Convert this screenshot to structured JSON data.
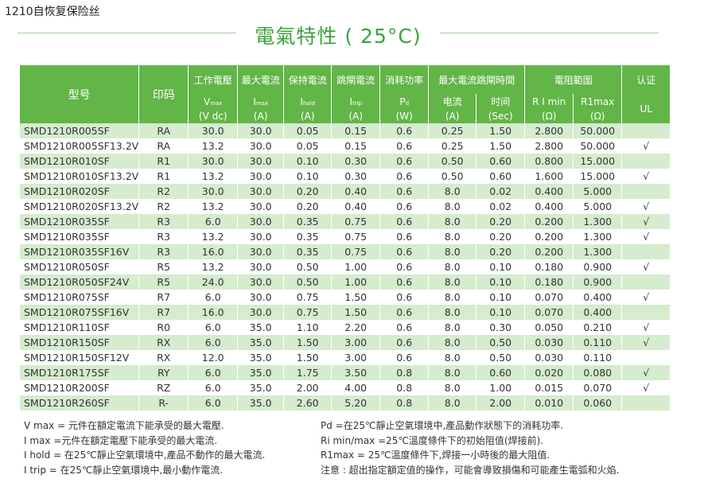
{
  "page_title": "1210自恢复保险丝",
  "section_title": "電氣特性 ( 25°C)",
  "table": {
    "header": {
      "row1": [
        "型号",
        "印码",
        "工作電壓",
        "最大電流",
        "保持電流",
        "跳閘電流",
        "消耗功率",
        "最大電流跳閘時間",
        "電阻範圍",
        "认证"
      ],
      "row2": [
        {
          "main": "V",
          "sub": "max"
        },
        {
          "main": "I",
          "sub": "max"
        },
        {
          "main": "I",
          "sub": "hold"
        },
        {
          "main": "I",
          "sub": "trip"
        },
        {
          "main": "P",
          "sub": "d"
        },
        "电流",
        "时间",
        "R I min",
        "R1max",
        "UL"
      ],
      "row3": [
        "(V dc)",
        "(A)",
        "(A)",
        "(A)",
        "(W)",
        "(A)",
        "(Sec)",
        "(Ω)",
        "(Ω)"
      ]
    },
    "rows": [
      [
        "SMD1210R005SF",
        "RA",
        "30.0",
        "30.0",
        "0.05",
        "0.15",
        "0.6",
        "0.25",
        "1.50",
        "2.800",
        "50.000",
        null
      ],
      [
        "SMD1210R005SF13.2V",
        "RA",
        "13.2",
        "30.0",
        "0.05",
        "0.15",
        "0.6",
        "0.25",
        "1.50",
        "2.800",
        "50.000",
        "√"
      ],
      [
        "SMD1210R010SF",
        "R1",
        "30.0",
        "30.0",
        "0.10",
        "0.30",
        "0.6",
        "0.50",
        "0.60",
        "0.800",
        "15.000",
        null
      ],
      [
        "SMD1210R010SF13.2V",
        "R1",
        "13.2",
        "30.0",
        "0.10",
        "0.30",
        "0.6",
        "0.50",
        "0.60",
        "1.600",
        "15.000",
        "√"
      ],
      [
        "SMD1210R020SF",
        "R2",
        "30.0",
        "30.0",
        "0.20",
        "0.40",
        "0.6",
        "8.0",
        "0.02",
        "0.400",
        "5.000",
        null
      ],
      [
        "SMD1210R020SF13.2V",
        "R2",
        "13.2",
        "30.0",
        "0.20",
        "0.40",
        "0.6",
        "8.0",
        "0.02",
        "0.400",
        "5.000",
        "√"
      ],
      [
        "SMD1210R035SF",
        "R3",
        "6.0",
        "30.0",
        "0.35",
        "0.75",
        "0.6",
        "8.0",
        "0.20",
        "0.200",
        "1.300",
        "√"
      ],
      [
        "SMD1210R035SF",
        "R3",
        "13.2",
        "30.0",
        "0.35",
        "0.75",
        "0.6",
        "8.0",
        "0.20",
        "0.200",
        "1.300",
        "√"
      ],
      [
        "SMD1210R035SF16V",
        "R3",
        "16.0",
        "30.0",
        "0.35",
        "0.75",
        "0.6",
        "8.0",
        "0.20",
        "0.200",
        "1.300",
        null
      ],
      [
        "SMD1210R050SF",
        "R5",
        "13.2",
        "30.0",
        "0.50",
        "1.00",
        "0.6",
        "8.0",
        "0.10",
        "0.180",
        "0.900",
        "√"
      ],
      [
        "SMD1210R050SF24V",
        "R5",
        "24.0",
        "30.0",
        "0.50",
        "1.00",
        "0.6",
        "8.0",
        "0.10",
        "0.180",
        "0.900",
        null
      ],
      [
        "SMD1210R075SF",
        "R7",
        "6.0",
        "30.0",
        "0.75",
        "1.50",
        "0.6",
        "8.0",
        "0.10",
        "0.070",
        "0.400",
        "√"
      ],
      [
        "SMD1210R075SF16V",
        "R7",
        "16.0",
        "30.0",
        "0.75",
        "1.50",
        "0.6",
        "8.0",
        "0.10",
        "0.070",
        "0.400",
        null
      ],
      [
        "SMD1210R110SF",
        "R0",
        "6.0",
        "35.0",
        "1.10",
        "2.20",
        "0.6",
        "8.0",
        "0.30",
        "0.050",
        "0.210",
        "√"
      ],
      [
        "SMD1210R150SF",
        "RX",
        "6.0",
        "35.0",
        "1.50",
        "3.00",
        "0.6",
        "8.0",
        "0.50",
        "0.030",
        "0.110",
        "√"
      ],
      [
        "SMD1210R150SF12V",
        "RX",
        "12.0",
        "35.0",
        "1.50",
        "3.00",
        "0.6",
        "8.0",
        "0.50",
        "0.030",
        "0.110",
        null
      ],
      [
        "SMD1210R175SF",
        "RY",
        "6.0",
        "35.0",
        "1.75",
        "3.50",
        "0.8",
        "8.0",
        "0.60",
        "0.020",
        "0.080",
        "√"
      ],
      [
        "SMD1210R200SF",
        "RZ",
        "6.0",
        "35.0",
        "2.00",
        "4.00",
        "0.8",
        "8.0",
        "1.00",
        "0.015",
        "0.070",
        "√"
      ],
      [
        "SMD1210R260SF",
        "R-",
        "6.0",
        "35.0",
        "2.60",
        "5.20",
        "0.8",
        "8.0",
        "2.00",
        "0.010",
        "0.060",
        null
      ]
    ]
  },
  "notes": {
    "left": [
      "V max = 元件在額定電流下能承受的最大電壓.",
      "I max =元件在額定電壓下能承受的最大電流.",
      "I hold = 在25℃靜止空氣環境中,產品不動作的最大電流.",
      "I trip = 在25℃靜止空氣環境中,最小動作電流."
    ],
    "right": [
      "Pd =在25℃靜止空氣環境中,產品動作狀態下的消耗功率.",
      "Ri min/max  =25℃溫度條件下的初始阻值(焊接前).",
      "R1max  = 25℃溫度條件下,焊接一小時後的最大阻值.",
      "注意 : 超出指定額定值的操作，可能會導致損傷和可能產生電弧和火焰."
    ]
  }
}
